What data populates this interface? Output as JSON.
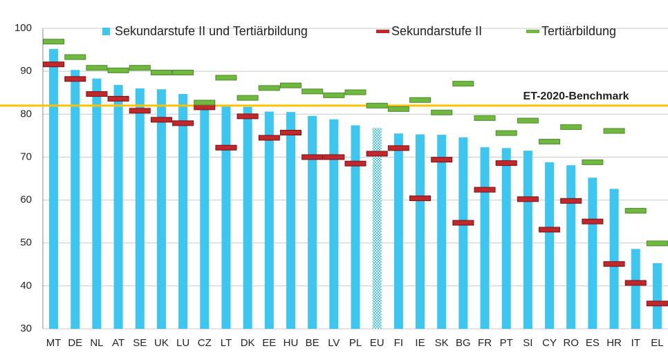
{
  "chart_data": {
    "type": "bar",
    "categories": [
      "MT",
      "DE",
      "NL",
      "AT",
      "SE",
      "UK",
      "LU",
      "CZ",
      "LT",
      "DK",
      "EE",
      "HU",
      "BE",
      "LV",
      "PL",
      "EU",
      "FI",
      "IE",
      "SK",
      "BG",
      "FR",
      "PT",
      "SI",
      "CY",
      "RO",
      "ES",
      "HR",
      "IT",
      "EL"
    ],
    "series": [
      {
        "name": "Sekundarstufe II und Tertiärbildung",
        "color": "#3cc6f0",
        "values": [
          95.2,
          90.3,
          88.3,
          86.8,
          86.0,
          85.8,
          84.7,
          81.6,
          81.8,
          81.7,
          80.6,
          80.5,
          79.6,
          78.8,
          77.4,
          76.8,
          75.5,
          75.3,
          75.2,
          74.6,
          72.3,
          72.1,
          71.5,
          68.8,
          68.1,
          65.2,
          62.6,
          48.6,
          45.3
        ]
      },
      {
        "name": "Sekundarstufe II",
        "color": "#c0282c",
        "values": [
          91.6,
          88.2,
          84.7,
          83.6,
          80.8,
          78.7,
          77.9,
          81.6,
          72.2,
          79.5,
          74.5,
          75.7,
          70.0,
          70.0,
          68.5,
          70.8,
          72.1,
          60.4,
          69.4,
          54.7,
          62.4,
          68.6,
          60.2,
          53.1,
          59.8,
          55.0,
          45.1,
          40.7,
          35.9
        ]
      },
      {
        "name": "Tertiärbildung",
        "color": "#70b840",
        "values": [
          96.9,
          93.3,
          90.8,
          90.2,
          90.8,
          89.7,
          89.7,
          82.7,
          88.5,
          83.8,
          86.1,
          86.7,
          85.3,
          84.4,
          85.1,
          82.0,
          81.2,
          83.3,
          80.4,
          87.1,
          79.1,
          75.6,
          78.5,
          73.6,
          77.0,
          68.8,
          76.1,
          57.5,
          49.9
        ]
      }
    ],
    "highlight_category": "EU",
    "benchmark": {
      "label": "ET-2020-Benchmark",
      "value": 82,
      "color": "#ffc000"
    },
    "ylim": [
      30,
      100
    ],
    "yticks": [
      30,
      40,
      50,
      60,
      70,
      80,
      90,
      100
    ],
    "grid": true
  }
}
